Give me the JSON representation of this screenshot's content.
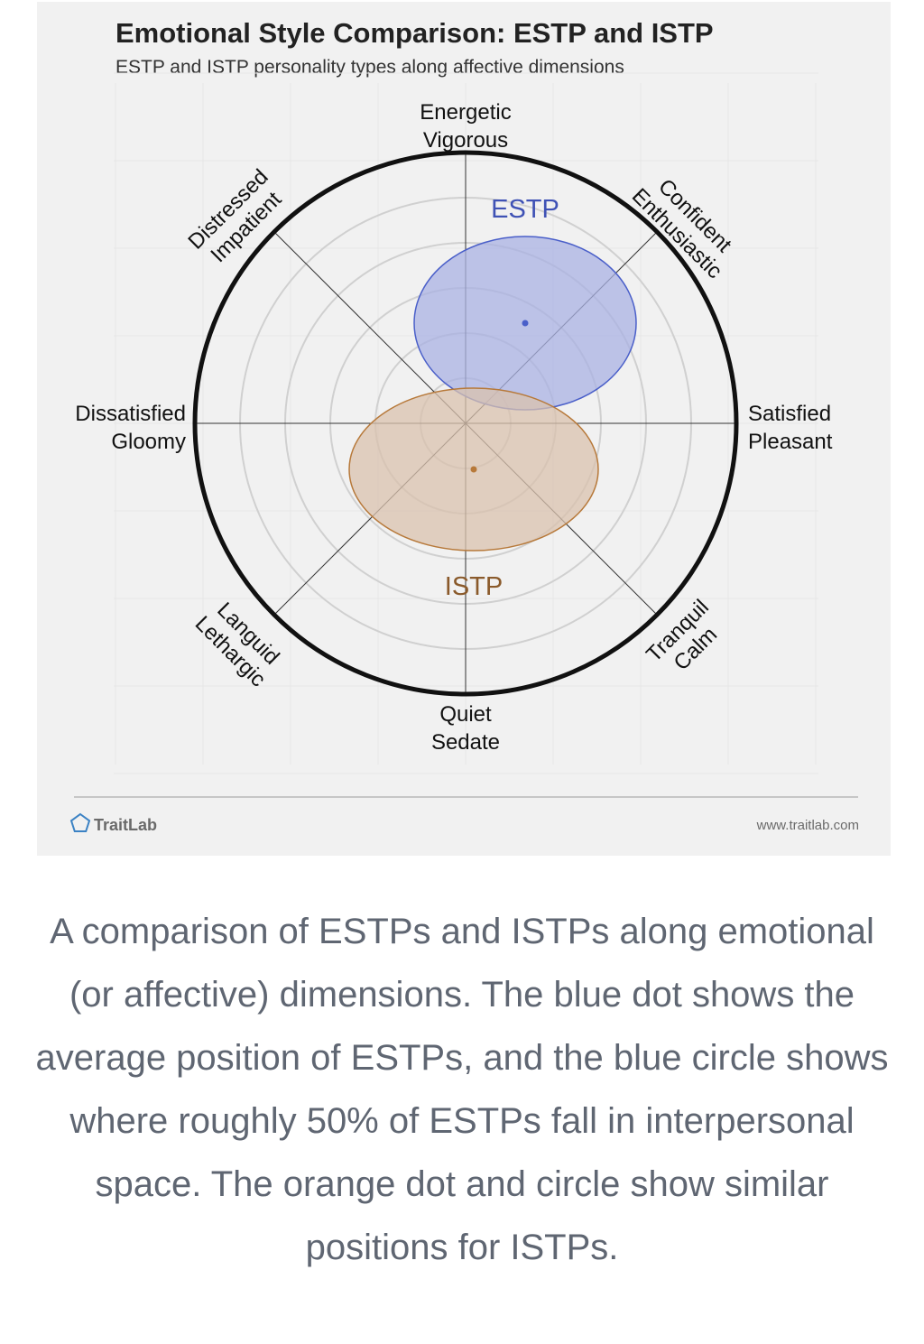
{
  "chart_data": {
    "type": "scatter",
    "title": "Emotional Style Comparison: ESTP and ISTP",
    "subtitle": "ESTP and ISTP personality types along affective dimensions",
    "axes": {
      "top": [
        "Energetic",
        "Vigorous"
      ],
      "bottom": [
        "Quiet",
        "Sedate"
      ],
      "left": [
        "Dissatisfied",
        "Gloomy"
      ],
      "right": [
        "Satisfied",
        "Pleasant"
      ],
      "top_right": [
        "Confident",
        "Enthusiastic"
      ],
      "top_left": [
        "Distressed",
        "Impatient"
      ],
      "bottom_left": [
        "Languid",
        "Lethargic"
      ],
      "bottom_right": [
        "Tranquil",
        "Calm"
      ]
    },
    "xlim": [
      -1,
      1
    ],
    "ylim": [
      -1,
      1
    ],
    "grid": true,
    "series": [
      {
        "name": "ESTP",
        "x": 0.22,
        "y": 0.37,
        "rx": 0.41,
        "ry": 0.32,
        "color": "#4a5fc9",
        "fill": "#aab1e3"
      },
      {
        "name": "ISTP",
        "x": 0.03,
        "y": -0.17,
        "rx": 0.46,
        "ry": 0.3,
        "color": "#b7793a",
        "fill": "#d9c2ad"
      }
    ]
  },
  "footer": {
    "brand": "TraitLab",
    "url": "www.traitlab.com"
  },
  "caption": "A comparison of ESTPs and ISTPs along emotional (or affective) dimensions. The blue dot shows the average position of ESTPs, and the blue circle shows where roughly 50% of ESTPs fall in interpersonal space. The orange dot and circle show similar positions for ISTPs."
}
